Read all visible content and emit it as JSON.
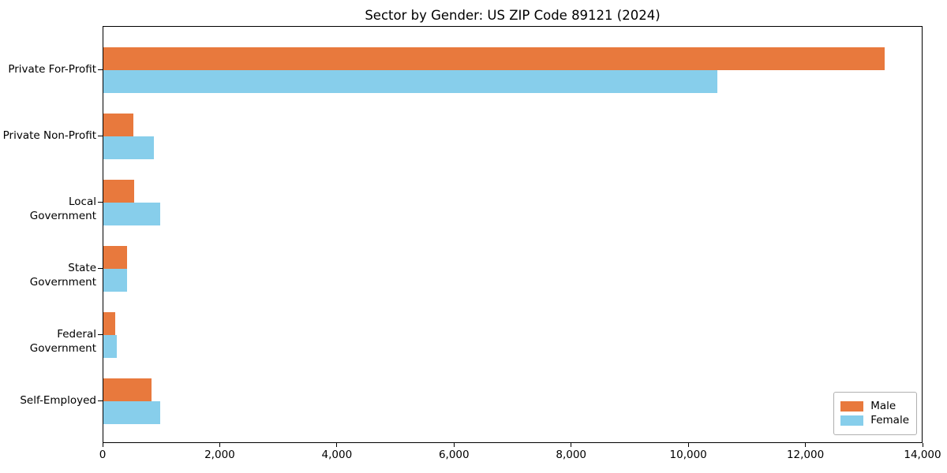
{
  "chart_data": {
    "type": "bar",
    "orientation": "horizontal",
    "title": "Sector by Gender: US ZIP Code 89121 (2024)",
    "categories": [
      "Private For-Profit",
      "Private Non-Profit",
      "Local Government",
      "State Government",
      "Federal Government",
      "Self-Employed"
    ],
    "series": [
      {
        "name": "Male",
        "color": "#e8793d",
        "values": [
          13340,
          510,
          520,
          400,
          195,
          820
        ]
      },
      {
        "name": "Female",
        "color": "#87ceeb",
        "values": [
          10480,
          860,
          975,
          410,
          225,
          965
        ]
      }
    ],
    "xlabel": "",
    "ylabel": "",
    "xlim": [
      0,
      14000
    ],
    "x_tick_values": [
      0,
      2000,
      4000,
      6000,
      8000,
      10000,
      12000,
      14000
    ],
    "x_tick_labels": [
      "0",
      "2,000",
      "4,000",
      "6,000",
      "8,000",
      "10,000",
      "12,000",
      "14,000"
    ],
    "grid": false,
    "legend_position": "lower right",
    "background_color": "#ffffff",
    "axis_color": "#000000"
  }
}
